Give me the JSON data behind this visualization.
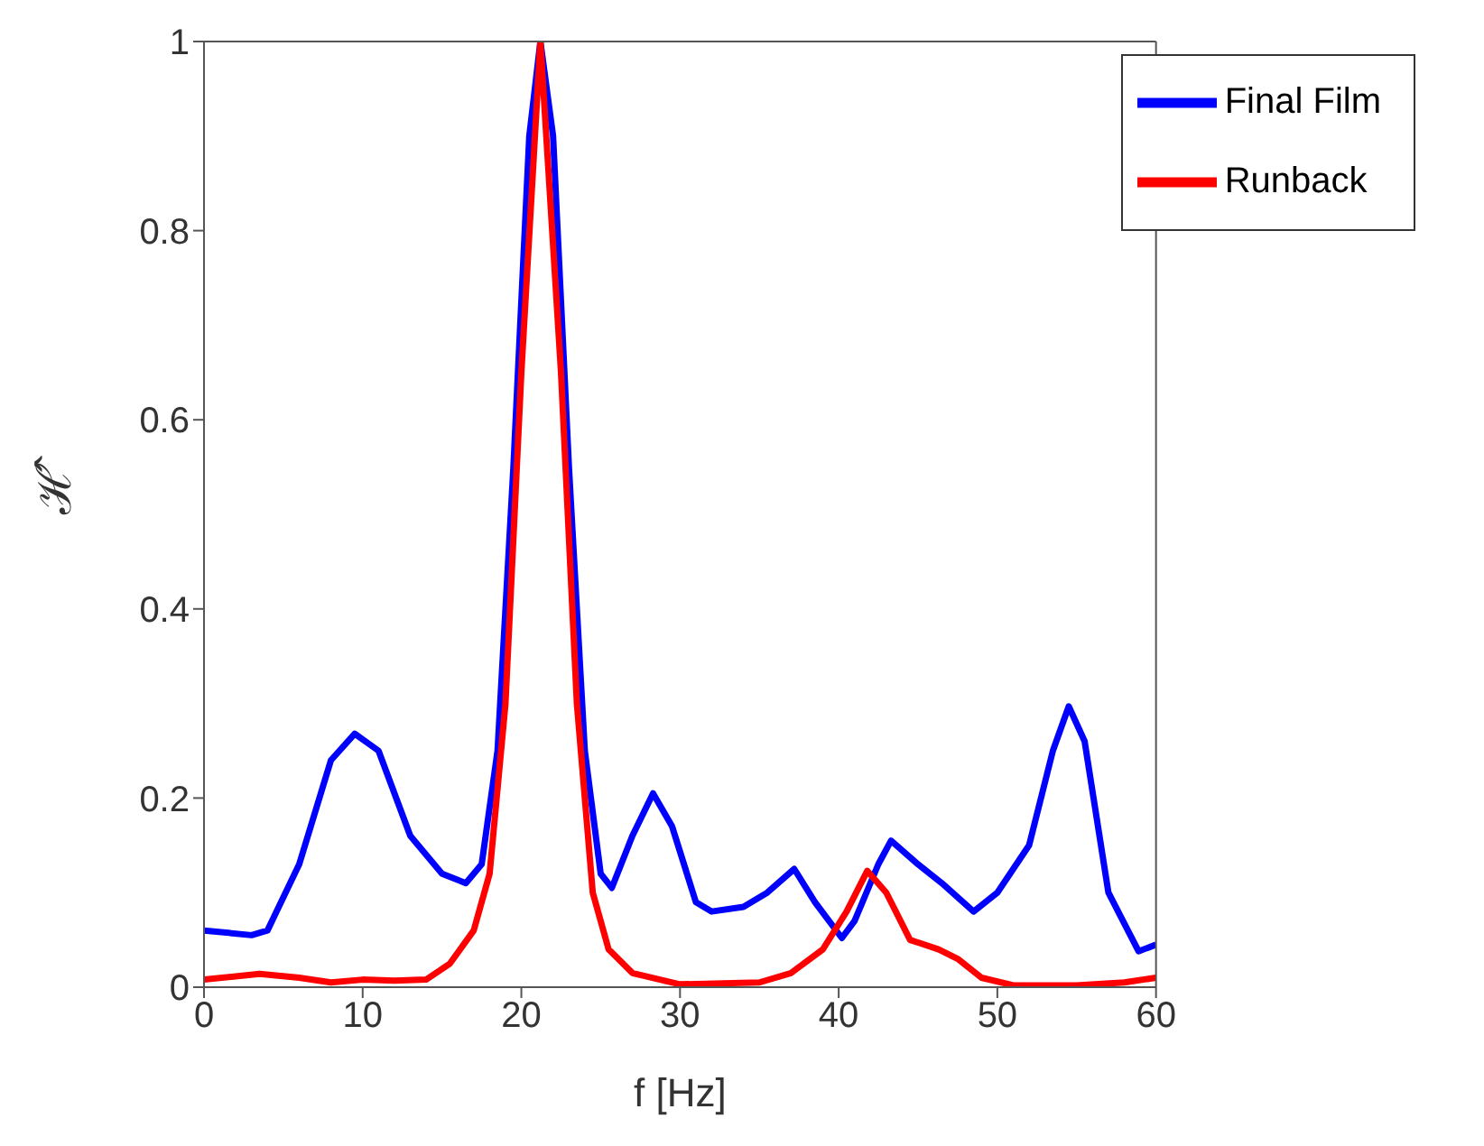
{
  "chart_data": {
    "type": "line",
    "xlabel": "f [Hz]",
    "ylabel": "ℋ̂",
    "xlim": [
      0,
      60
    ],
    "xticks": [
      0,
      10,
      20,
      30,
      40,
      50,
      60
    ],
    "ylim": [
      0,
      1
    ],
    "yticks": [
      0,
      0.2,
      0.4,
      0.6,
      0.8,
      1
    ],
    "grid": false,
    "legend": "top right",
    "marker": "none",
    "line_style": "solid",
    "series": [
      {
        "name": "Final Film",
        "color": "#0000ff",
        "x": [
          0,
          3,
          4,
          6,
          8,
          9.5,
          11,
          13,
          15,
          16.5,
          17.5,
          18.5,
          19.5,
          20.5,
          21.2,
          22,
          23,
          24,
          25,
          25.7,
          27,
          28.3,
          29.5,
          31,
          32,
          34,
          35.5,
          37.2,
          38.5,
          40.2,
          41,
          42.5,
          43.3,
          45,
          46.5,
          48.5,
          50,
          52,
          53.5,
          54.5,
          55.5,
          57,
          58.9,
          60
        ],
        "values": [
          0.06,
          0.055,
          0.06,
          0.13,
          0.24,
          0.268,
          0.25,
          0.16,
          0.12,
          0.11,
          0.13,
          0.25,
          0.55,
          0.9,
          1.0,
          0.9,
          0.55,
          0.25,
          0.12,
          0.105,
          0.16,
          0.205,
          0.17,
          0.09,
          0.08,
          0.085,
          0.1,
          0.125,
          0.09,
          0.052,
          0.07,
          0.13,
          0.155,
          0.13,
          0.11,
          0.08,
          0.1,
          0.15,
          0.25,
          0.297,
          0.26,
          0.1,
          0.038,
          0.045
        ]
      },
      {
        "name": "Runback",
        "color": "#ff0000",
        "x": [
          0,
          3.5,
          6,
          8,
          10,
          12,
          14,
          15.5,
          17,
          18,
          19,
          20,
          21.2,
          22.5,
          23.5,
          24.5,
          25.5,
          27,
          30,
          35,
          37,
          39,
          40.5,
          41.8,
          43,
          44.5,
          46.3,
          47.5,
          49,
          51,
          55,
          58,
          60
        ],
        "values": [
          0.008,
          0.014,
          0.01,
          0.005,
          0.008,
          0.007,
          0.008,
          0.025,
          0.06,
          0.12,
          0.3,
          0.65,
          1.0,
          0.65,
          0.3,
          0.1,
          0.04,
          0.015,
          0.003,
          0.005,
          0.015,
          0.04,
          0.08,
          0.123,
          0.1,
          0.05,
          0.04,
          0.03,
          0.01,
          0.002,
          0.002,
          0.005,
          0.01
        ]
      }
    ]
  }
}
